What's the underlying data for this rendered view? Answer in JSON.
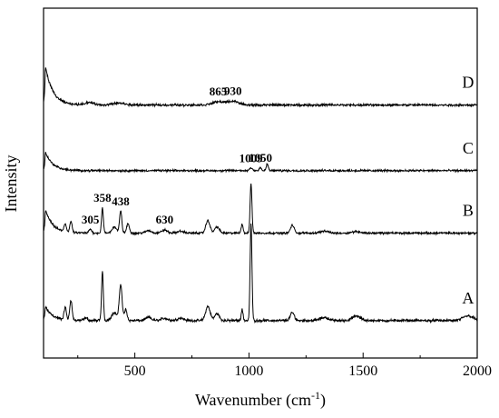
{
  "chart_data": {
    "type": "line",
    "title": "",
    "xlabel_main": "Wavenumber (cm",
    "xlabel_sup": "-1",
    "xlabel_end": ")",
    "ylabel": "Intensity",
    "xlim": [
      100,
      2000
    ],
    "xticks": [
      500,
      1000,
      1500,
      2000
    ],
    "grid": false,
    "y_scale": "arbitrary units, vertically offset spectra",
    "series": [
      {
        "name": "A",
        "baseline": 0.0,
        "rise_height": 0.45,
        "peaks": [
          {
            "x": 195,
            "h": 0.4,
            "w": 5
          },
          {
            "x": 220,
            "h": 0.65,
            "w": 5
          },
          {
            "x": 285,
            "h": 0.08,
            "w": 8
          },
          {
            "x": 358,
            "h": 1.55,
            "w": 4
          },
          {
            "x": 410,
            "h": 0.25,
            "w": 12
          },
          {
            "x": 438,
            "h": 1.15,
            "w": 6
          },
          {
            "x": 460,
            "h": 0.35,
            "w": 6
          },
          {
            "x": 560,
            "h": 0.1,
            "w": 12
          },
          {
            "x": 630,
            "h": 0.07,
            "w": 14
          },
          {
            "x": 700,
            "h": 0.08,
            "w": 14
          },
          {
            "x": 820,
            "h": 0.45,
            "w": 10
          },
          {
            "x": 860,
            "h": 0.22,
            "w": 10
          },
          {
            "x": 970,
            "h": 0.35,
            "w": 4
          },
          {
            "x": 1009,
            "h": 3.1,
            "w": 4
          },
          {
            "x": 1190,
            "h": 0.25,
            "w": 9
          },
          {
            "x": 1330,
            "h": 0.1,
            "w": 18
          },
          {
            "x": 1470,
            "h": 0.14,
            "w": 18
          },
          {
            "x": 1960,
            "h": 0.15,
            "w": 22
          }
        ],
        "noise": 0.05
      },
      {
        "name": "B",
        "baseline": 2.8,
        "rise_height": 0.75,
        "peaks": [
          {
            "x": 195,
            "h": 0.25,
            "w": 5
          },
          {
            "x": 220,
            "h": 0.35,
            "w": 5
          },
          {
            "x": 305,
            "h": 0.12,
            "w": 6
          },
          {
            "x": 358,
            "h": 0.8,
            "w": 4
          },
          {
            "x": 410,
            "h": 0.2,
            "w": 10
          },
          {
            "x": 438,
            "h": 0.7,
            "w": 5
          },
          {
            "x": 470,
            "h": 0.3,
            "w": 6
          },
          {
            "x": 560,
            "h": 0.08,
            "w": 12
          },
          {
            "x": 630,
            "h": 0.1,
            "w": 12
          },
          {
            "x": 700,
            "h": 0.06,
            "w": 14
          },
          {
            "x": 820,
            "h": 0.4,
            "w": 9
          },
          {
            "x": 860,
            "h": 0.2,
            "w": 10
          },
          {
            "x": 970,
            "h": 0.3,
            "w": 4
          },
          {
            "x": 1009,
            "h": 1.6,
            "w": 4
          },
          {
            "x": 1190,
            "h": 0.25,
            "w": 8
          },
          {
            "x": 1330,
            "h": 0.06,
            "w": 18
          },
          {
            "x": 1470,
            "h": 0.05,
            "w": 18
          }
        ],
        "noise": 0.04
      },
      {
        "name": "C",
        "baseline": 4.8,
        "rise_height": 0.6,
        "peaks": [
          {
            "x": 1009,
            "h": 0.1,
            "w": 6
          },
          {
            "x": 1050,
            "h": 0.1,
            "w": 4
          },
          {
            "x": 1080,
            "h": 0.22,
            "w": 4
          }
        ],
        "noise": 0.04
      },
      {
        "name": "D",
        "baseline": 6.9,
        "rise_height": 1.25,
        "peaks": [
          {
            "x": 300,
            "h": 0.08,
            "w": 20
          },
          {
            "x": 430,
            "h": 0.06,
            "w": 25
          },
          {
            "x": 865,
            "h": 0.1,
            "w": 25
          },
          {
            "x": 930,
            "h": 0.12,
            "w": 25
          }
        ],
        "noise": 0.045
      }
    ],
    "annotations": [
      {
        "text": "865",
        "x": 865,
        "series": "D"
      },
      {
        "text": "930",
        "x": 930,
        "series": "D"
      },
      {
        "text": "1009",
        "x": 1009,
        "series": "C"
      },
      {
        "text": "1050",
        "x": 1050,
        "series": "C"
      },
      {
        "text": "358",
        "x": 358,
        "series": "B"
      },
      {
        "text": "438",
        "x": 438,
        "series": "B"
      },
      {
        "text": "305",
        "x": 305,
        "series": "B"
      },
      {
        "text": "630",
        "x": 630,
        "series": "B"
      }
    ]
  }
}
